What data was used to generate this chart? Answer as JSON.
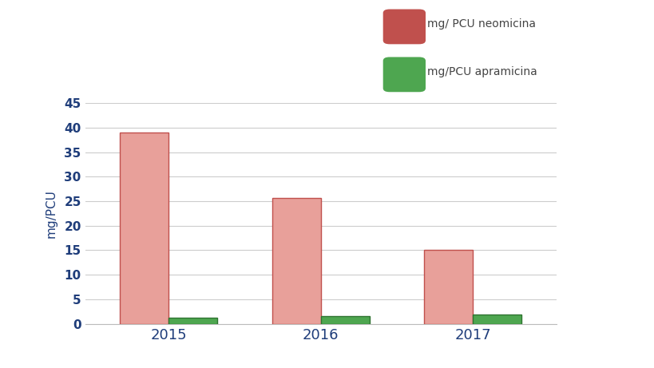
{
  "years": [
    "2015",
    "2016",
    "2017"
  ],
  "neomicina": [
    39.0,
    25.7,
    15.0
  ],
  "apramicina": [
    1.2,
    1.5,
    1.9
  ],
  "neo_color": "#e8a09a",
  "neo_edge_color": "#c0504d",
  "apr_color": "#4ea650",
  "apr_edge_color": "#2e7330",
  "ylabel": "mg/PCU",
  "ylim": [
    0,
    45
  ],
  "yticks": [
    0,
    5,
    10,
    15,
    20,
    25,
    30,
    35,
    40,
    45
  ],
  "legend_neo": "mg/ PCU neomicina",
  "legend_apr": "mg/PCU apramicina",
  "tick_color": "#1f3d7a",
  "bar_width": 0.32,
  "background_color": "#ffffff",
  "grid_color": "#cccccc",
  "legend_neo_color": "#c0504d",
  "legend_apr_color": "#4ea650"
}
